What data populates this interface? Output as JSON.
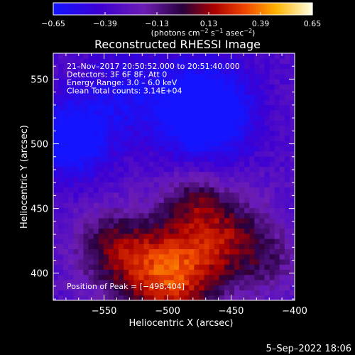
{
  "chart_data": {
    "type": "heatmap",
    "title": "Reconstructed RHESSI Image",
    "xlabel": "Heliocentric X (arcsec)",
    "ylabel": "Heliocentric Y (arcsec)",
    "xlim": [
      -590,
      -400
    ],
    "ylim": [
      379,
      570
    ],
    "x_ticks": [
      -550,
      -500,
      -450,
      -400
    ],
    "x_tick_labels": [
      "−550",
      "−500",
      "−450",
      "−400"
    ],
    "y_ticks": [
      400,
      450,
      500,
      550
    ],
    "y_tick_labels": [
      "400",
      "450",
      "500",
      "550"
    ],
    "colorbar": {
      "range": [
        -0.65,
        0.65
      ],
      "ticks": [
        -0.65,
        -0.39,
        -0.13,
        0.13,
        0.39,
        0.65
      ],
      "tick_labels": [
        "−0.65",
        "−0.39",
        "−0.13",
        "0.13",
        "0.39",
        "0.65"
      ],
      "units_prefix": "(photons cm",
      "units_parts": [
        {
          "text": "(photons cm",
          "sup": false
        },
        {
          "text": "−2",
          "sup": true
        },
        {
          "text": " s",
          "sup": false
        },
        {
          "text": "−1",
          "sup": true
        },
        {
          "text": " asec",
          "sup": false
        },
        {
          "text": "−2",
          "sup": true
        },
        {
          "text": ")",
          "sup": false
        }
      ]
    },
    "annotations": [
      "21–Nov–2017 20:50:52.000 to 20:51:40.000",
      "Detectors: 3F 6F 8F, Att 0",
      "Energy Range: 3.0 – 6.0 keV",
      "Clean    Total counts: 3.14E+04"
    ],
    "peak_label": "Position of Peak = [−498,404]",
    "peak": {
      "x": -498,
      "y": 404
    },
    "colormap": "rhessi-blue-red-yellow",
    "components": [
      {
        "x": -500,
        "y": 400,
        "sigma": 28,
        "amp": 0.62
      },
      {
        "x": -455,
        "y": 430,
        "sigma": 24,
        "amp": 0.36
      },
      {
        "x": -545,
        "y": 420,
        "sigma": 20,
        "amp": 0.3
      },
      {
        "x": -480,
        "y": 458,
        "sigma": 16,
        "amp": 0.22
      },
      {
        "x": -420,
        "y": 410,
        "sigma": 18,
        "amp": 0.18
      },
      {
        "x": -470,
        "y": 525,
        "sigma": 26,
        "amp": -0.55
      },
      {
        "x": -575,
        "y": 505,
        "sigma": 22,
        "amp": -0.45
      },
      {
        "x": -530,
        "y": 540,
        "sigma": 24,
        "amp": -0.22
      }
    ],
    "background_level": -0.32
  },
  "footer": {
    "timestamp": "5–Sep–2022 18:06"
  }
}
